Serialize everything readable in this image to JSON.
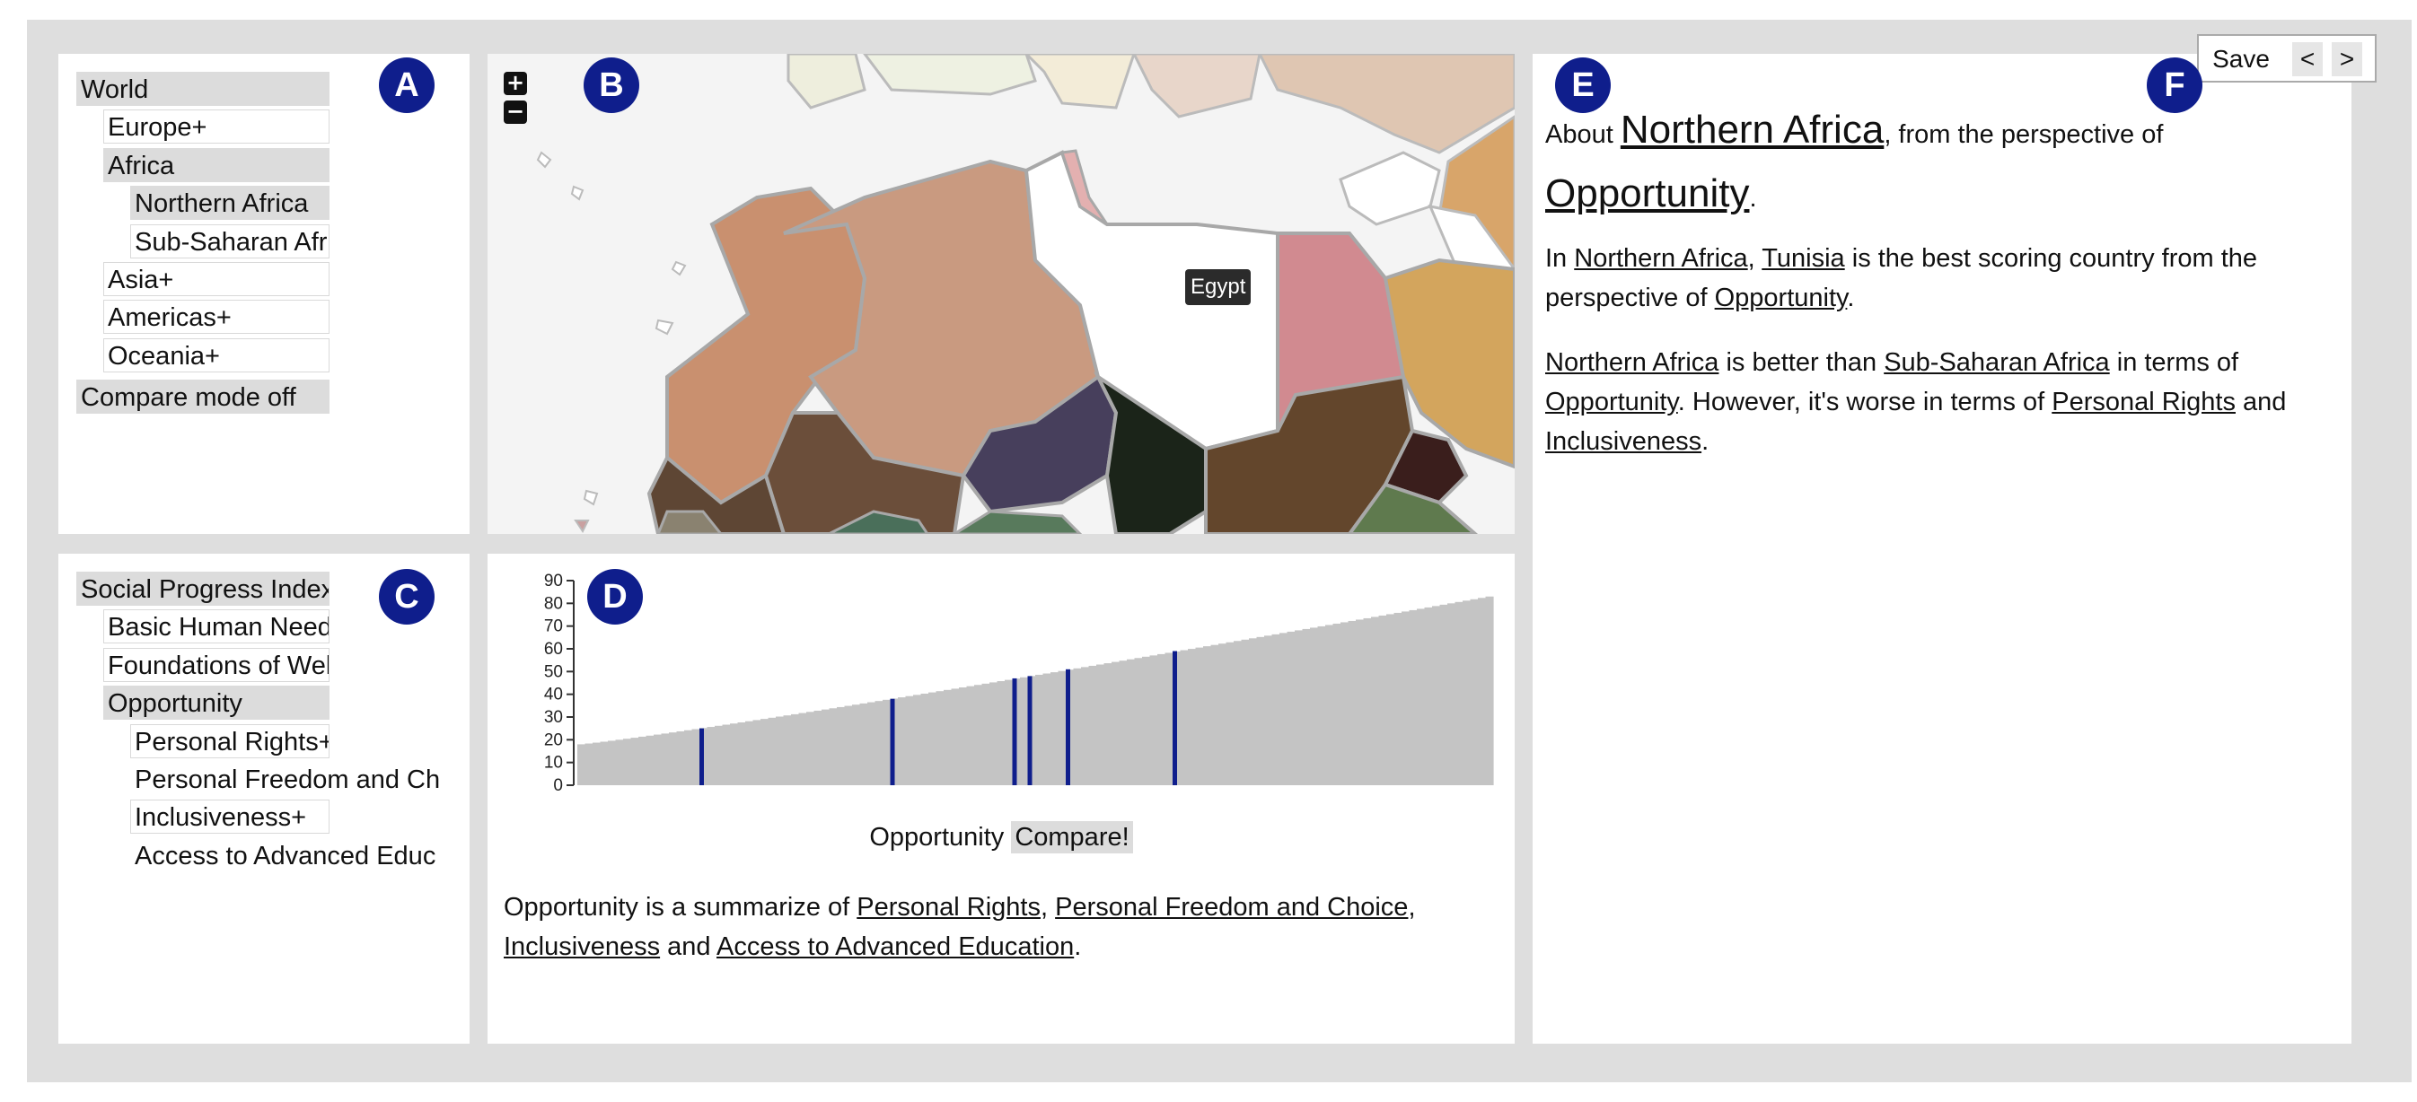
{
  "geo_tree": {
    "items": [
      {
        "label": "World",
        "state": "selected"
      },
      {
        "label": "Europe+",
        "state": "normal"
      },
      {
        "label": "Africa",
        "state": "selected"
      },
      {
        "label": "Northern Africa",
        "state": "selected"
      },
      {
        "label": "Sub-Saharan Africa+",
        "state": "normal"
      },
      {
        "label": "Asia+",
        "state": "normal"
      },
      {
        "label": "Americas+",
        "state": "normal"
      },
      {
        "label": "Oceania+",
        "state": "normal"
      }
    ],
    "compare_mode_label": "Compare mode off"
  },
  "map": {
    "zoom_in_label": "+",
    "zoom_out_label": "−",
    "tooltip": "Egypt",
    "colors": {
      "morocco": "#c9906f",
      "algeria": "#c99a80",
      "libya": "#ffffff",
      "egypt": "#d18a90",
      "mali": "#5d4232",
      "niger": "#473f5c",
      "chad": "#1b2419",
      "sudan": "#63462c",
      "arabia": "#d3a55d",
      "sea": "#f4f4f4"
    }
  },
  "indicator_tree": {
    "items": [
      {
        "label": "Social Progress Index",
        "state": "selected"
      },
      {
        "label": "Basic Human Needs+",
        "state": "normal"
      },
      {
        "label": "Foundations of Wellbeing+",
        "state": "normal"
      },
      {
        "label": "Opportunity",
        "state": "selected"
      },
      {
        "label": "Personal Rights+",
        "state": "normal"
      },
      {
        "label": "Personal Freedom and Ch",
        "state": "plain"
      },
      {
        "label": "Inclusiveness+",
        "state": "normal"
      },
      {
        "label": "Access to Advanced Educ",
        "state": "plain"
      }
    ]
  },
  "chart_panel": {
    "indicator_label": "Opportunity",
    "compare_button": "Compare!",
    "summary_prefix": "Opportunity is a summarize of ",
    "summary_links": [
      "Personal Rights",
      "Personal Freedom and Choice",
      "Inclusiveness",
      "Access to Advanced Education"
    ],
    "sep_comma": ", ",
    "sep_and": " and ",
    "summary_end": "."
  },
  "chart_data": {
    "type": "bar",
    "ylim": [
      0,
      90
    ],
    "yticks": [
      "90",
      "80",
      "70",
      "60",
      "50",
      "40",
      "30",
      "20",
      "10",
      "0"
    ],
    "bar_count": 120,
    "min_value": 18,
    "max_value": 83,
    "highlighted_values": [
      25,
      38,
      47,
      48,
      51,
      59
    ],
    "highlight_color": "#0f1e8c",
    "bar_color": "#c4c4c4"
  },
  "narrative": {
    "line1_prefix": "About ",
    "region": "Northern Africa",
    "line1_mid": ", from the perspective of",
    "perspective": "Opportunity",
    "dot": ".",
    "p1_prefix": "In ",
    "p1_region": "Northern Africa",
    "p1_comma": ", ",
    "p1_country": "Tunisia",
    "p1_mid": " is the best scoring country from the perspective of ",
    "p1_perspective": "Opportunity",
    "p2_region": "Northern Africa",
    "p2_mid1": " is better than ",
    "p2_other": "Sub-Saharan Africa",
    "p2_mid2": " in terms of ",
    "p2_perspective": "Opportunity",
    "p2_mid3": ". However, it's worse in terms of ",
    "p2_worse1": "Personal Rights",
    "p2_and": " and ",
    "p2_worse2": "Inclusiveness"
  },
  "toolbar": {
    "save_label": "Save",
    "prev_label": "<",
    "next_label": ">"
  },
  "badges": {
    "a": "A",
    "b": "B",
    "c": "C",
    "d": "D",
    "e": "E",
    "f": "F"
  }
}
